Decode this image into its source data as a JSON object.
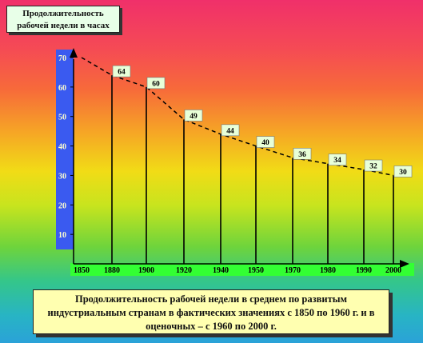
{
  "chart_data": {
    "type": "bar",
    "ylabel": "Продолжительность рабочей недели в часах",
    "caption": "Продолжительность рабочей недели в среднем по развитым индустриальным странам в фактических значениях с 1850 по 1960 г. и в оценочных – с 1960 по 2000 г.",
    "categories": [
      "1850",
      "1880",
      "1900",
      "1920",
      "1940",
      "1950",
      "1970",
      "1980",
      "1990",
      "2000"
    ],
    "values": [
      70,
      64,
      60,
      49,
      44,
      40,
      36,
      34,
      32,
      30
    ],
    "data_labels": [
      "",
      "64",
      "60",
      "49",
      "44",
      "40",
      "36",
      "34",
      "32",
      "30"
    ],
    "yticks": [
      "10",
      "20",
      "30",
      "40",
      "50",
      "60",
      "70"
    ],
    "ylim": [
      0,
      80
    ],
    "trend_line": "dashed",
    "colors": {
      "axis_bar": "#3a5af0",
      "x_axis_bar": "#33ff33",
      "label_box": "#e8ffd8",
      "caption_box": "#ffffb0"
    }
  }
}
